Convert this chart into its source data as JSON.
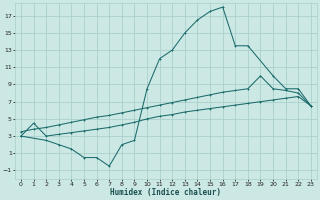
{
  "xlabel": "Humidex (Indice chaleur)",
  "background_color": "#cce8e4",
  "grid_color": "#aacfca",
  "line_color": "#1a6b6b",
  "xlim": [
    -0.5,
    23.5
  ],
  "ylim": [
    -2,
    18.5
  ],
  "xticks": [
    0,
    1,
    2,
    3,
    4,
    5,
    6,
    7,
    8,
    9,
    10,
    11,
    12,
    13,
    14,
    15,
    16,
    17,
    18,
    19,
    20,
    21,
    22,
    23
  ],
  "yticks": [
    -1,
    1,
    3,
    5,
    7,
    9,
    11,
    13,
    15,
    17
  ],
  "line1_x": [
    0,
    2,
    3,
    4,
    5,
    6,
    7,
    8,
    9,
    10,
    11,
    12,
    13,
    14,
    15,
    16,
    17,
    18,
    20,
    21,
    22,
    23
  ],
  "line1_y": [
    3,
    2.5,
    2,
    1.5,
    0.5,
    0.5,
    -0.5,
    2,
    2.5,
    8.5,
    12,
    13,
    15,
    16.5,
    17.5,
    18,
    13.5,
    13.5,
    10,
    8.5,
    8.5,
    6.5
  ],
  "line2_x": [
    0,
    1,
    2,
    3,
    4,
    5,
    6,
    7,
    8,
    9,
    10,
    11,
    12,
    13,
    14,
    15,
    16,
    17,
    18,
    19,
    20,
    21,
    22,
    23
  ],
  "line2_y": [
    3.0,
    4.5,
    3.0,
    3.2,
    3.4,
    3.6,
    3.8,
    4.0,
    4.3,
    4.6,
    5.0,
    5.3,
    5.5,
    5.8,
    6.0,
    6.2,
    6.4,
    6.6,
    6.8,
    7.0,
    7.2,
    7.4,
    7.6,
    6.5
  ],
  "line3_x": [
    0,
    1,
    2,
    3,
    4,
    5,
    6,
    7,
    8,
    9,
    10,
    11,
    12,
    13,
    14,
    15,
    16,
    17,
    18,
    19,
    20,
    21,
    22,
    23
  ],
  "line3_y": [
    3.5,
    3.8,
    4.0,
    4.3,
    4.6,
    4.9,
    5.2,
    5.4,
    5.7,
    6.0,
    6.3,
    6.6,
    6.9,
    7.2,
    7.5,
    7.8,
    8.1,
    8.3,
    8.5,
    10.0,
    8.5,
    8.3,
    8.0,
    6.5
  ]
}
